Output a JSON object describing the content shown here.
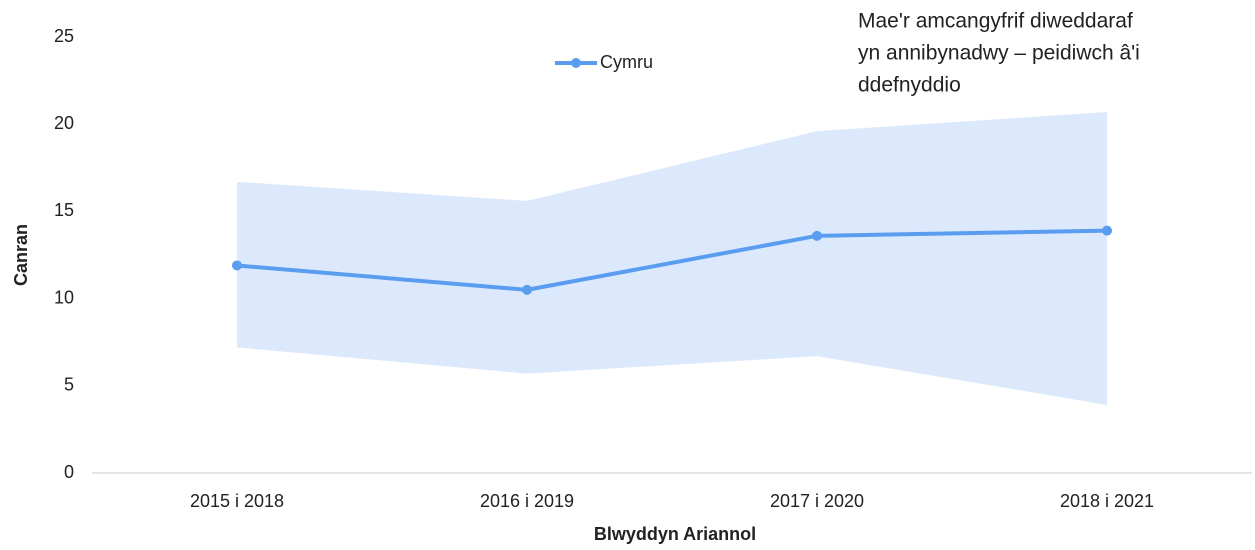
{
  "chart_data": {
    "type": "line",
    "categories": [
      "2015 i 2018",
      "2016 i 2019",
      "2017 i 2020",
      "2018 i 2021"
    ],
    "series": [
      {
        "name": "Cymru",
        "color": "#5a9cf0",
        "values": [
          11.9,
          10.5,
          13.6,
          13.9
        ]
      }
    ],
    "band": {
      "color": "#dce9fc",
      "lower": [
        7.2,
        5.7,
        6.7,
        3.9
      ],
      "upper": [
        16.7,
        15.6,
        19.6,
        20.7
      ]
    },
    "ylim": [
      0,
      25
    ],
    "yticks": [
      0,
      5,
      10,
      15,
      20,
      25
    ],
    "grid": false,
    "y_label": "Canran",
    "x_label": "Blwyddyn Ariannol",
    "annotation": [
      "Mae'r amcangyfrif diweddaraf",
      "yn annibynadwy – peidiwch â'i",
      "ddefnyddio"
    ],
    "legend": "top"
  }
}
